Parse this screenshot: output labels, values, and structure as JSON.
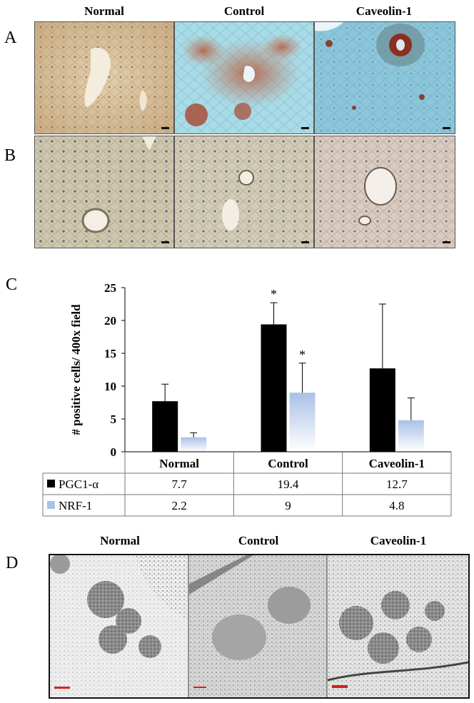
{
  "panels": {
    "a": {
      "letter": "A"
    },
    "b": {
      "letter": "B"
    },
    "c": {
      "letter": "C"
    },
    "d": {
      "letter": "D"
    }
  },
  "columns": [
    "Normal",
    "Control",
    "Caveolin-1"
  ],
  "chart_data": {
    "type": "bar",
    "categories": [
      "Normal",
      "Control",
      "Caveolin-1"
    ],
    "series": [
      {
        "name": "PGC1-α",
        "values": [
          7.7,
          19.4,
          12.7
        ],
        "errors": [
          2.6,
          3.3,
          9.8
        ],
        "color": "#000000"
      },
      {
        "name": "NRF-1",
        "values": [
          2.2,
          9,
          4.8
        ],
        "errors": [
          0.7,
          4.5,
          3.4
        ],
        "color": "#a9c1e6"
      }
    ],
    "significance": [
      {
        "series": 0,
        "category": 1,
        "mark": "*"
      },
      {
        "series": 1,
        "category": 1,
        "mark": "*"
      }
    ],
    "ylabel": "# positive cells/ 400x field",
    "yticks": [
      "0",
      "5",
      "10",
      "15",
      "20",
      "25"
    ],
    "ylim": [
      0,
      25
    ],
    "legend_placement": "data-table-left",
    "table": {
      "rows": [
        {
          "label": "PGC1-α",
          "cells": [
            "7.7",
            "19.4",
            "12.7"
          ]
        },
        {
          "label": "NRF-1",
          "cells": [
            "2.2",
            "9",
            "4.8"
          ]
        }
      ]
    }
  }
}
